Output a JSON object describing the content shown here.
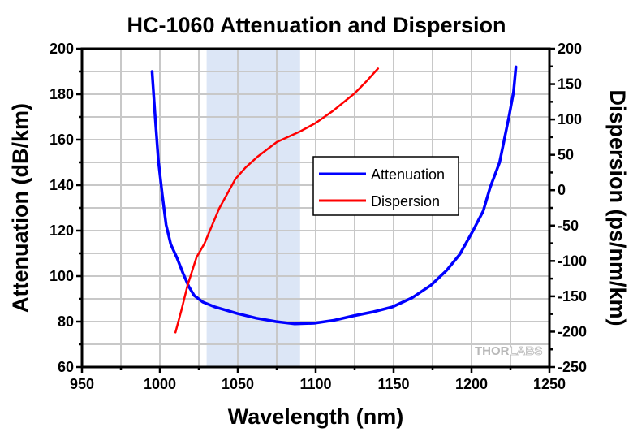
{
  "chart_data": {
    "type": "line",
    "title": "HC-1060 Attenuation and Dispersion",
    "xlabel": "Wavelength (nm)",
    "ylabel": "Attenuation (dB/km)",
    "y2label": "Dispersion (ps/nm/km)",
    "xlim": [
      950,
      1250
    ],
    "ylim": [
      60,
      200
    ],
    "y2lim": [
      -250,
      200
    ],
    "xticks": [
      950,
      1000,
      1050,
      1100,
      1150,
      1200,
      1250
    ],
    "yticks": [
      60,
      80,
      100,
      120,
      140,
      160,
      180,
      200
    ],
    "y2ticks": [
      -250,
      -200,
      -150,
      -100,
      -50,
      0,
      50,
      100,
      150,
      200
    ],
    "x_minor_step": 25,
    "y_minor_step": 10,
    "y2_minor_step": 25,
    "grid": true,
    "legend_position": "center-right",
    "highlight_band": {
      "x_from": 1030,
      "x_to": 1090,
      "color": "#dce6f6"
    },
    "series": [
      {
        "name": "Attenuation",
        "axis": "left",
        "color": "#0000ff",
        "points": [
          [
            995,
            190
          ],
          [
            997,
            170
          ],
          [
            999,
            151
          ],
          [
            1001.5,
            136
          ],
          [
            1004,
            122.5
          ],
          [
            1007,
            114
          ],
          [
            1011,
            108
          ],
          [
            1015,
            101
          ],
          [
            1018.5,
            95.5
          ],
          [
            1022,
            91.5
          ],
          [
            1027.5,
            88.6
          ],
          [
            1035,
            86.5
          ],
          [
            1049.5,
            83.6
          ],
          [
            1062,
            81.5
          ],
          [
            1074.5,
            80
          ],
          [
            1086.5,
            79
          ],
          [
            1099,
            79.3
          ],
          [
            1112,
            80.6
          ],
          [
            1124,
            82.5
          ],
          [
            1137,
            84.3
          ],
          [
            1149,
            86.4
          ],
          [
            1162,
            90.5
          ],
          [
            1174,
            96
          ],
          [
            1184,
            102.5
          ],
          [
            1192.5,
            109.6
          ],
          [
            1201,
            120
          ],
          [
            1207.5,
            128.6
          ],
          [
            1212,
            139
          ],
          [
            1218,
            150
          ],
          [
            1224,
            170
          ],
          [
            1227,
            181
          ],
          [
            1228.5,
            192
          ]
        ]
      },
      {
        "name": "Dispersion",
        "axis": "right",
        "color": "#ff0000",
        "points": [
          [
            1010,
            -201
          ],
          [
            1014,
            -168
          ],
          [
            1017.7,
            -135
          ],
          [
            1023.5,
            -95
          ],
          [
            1028.6,
            -75.5
          ],
          [
            1038,
            -26
          ],
          [
            1048.5,
            16
          ],
          [
            1055,
            32
          ],
          [
            1062.5,
            47
          ],
          [
            1075,
            68
          ],
          [
            1090,
            83
          ],
          [
            1100,
            95
          ],
          [
            1111,
            112
          ],
          [
            1125,
            137
          ],
          [
            1133,
            155
          ],
          [
            1140,
            172
          ]
        ]
      }
    ]
  },
  "watermark": {
    "bold": "THOR",
    "outline": "LABS"
  }
}
